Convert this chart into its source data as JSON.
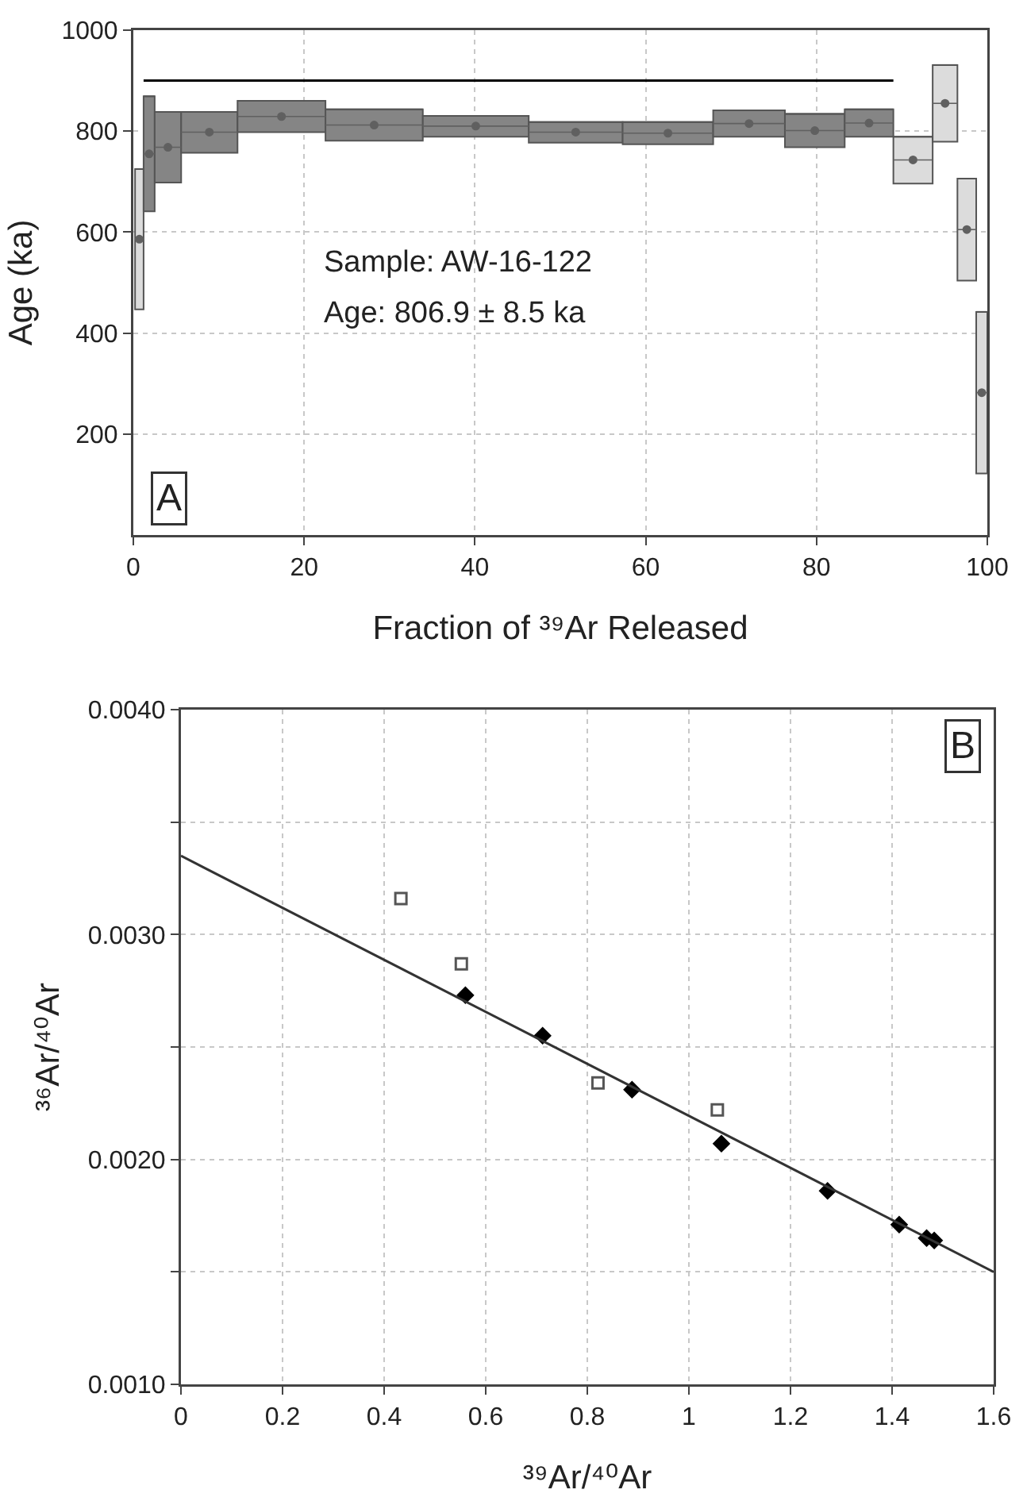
{
  "chart_data": [
    {
      "type": "bar",
      "xlabel": "Fraction of ³⁹Ar Released",
      "ylabel": "Age (ka)",
      "xlim": [
        0,
        100
      ],
      "xticks": [
        0,
        20,
        40,
        60,
        80,
        100
      ],
      "ylim": [
        0,
        1000
      ],
      "yticks": [
        200,
        400,
        600,
        800,
        1000
      ],
      "grid": true,
      "series": [
        {
          "x": [
            0.7,
            1.85,
            4.05,
            8.9,
            17.35,
            28.2,
            40.1,
            51.8,
            62.6,
            72.1,
            79.8,
            86.15,
            91.3,
            95.05,
            97.6,
            99.35
          ],
          "xerrors": [
            0.5,
            0.65,
            1.55,
            3.3,
            5.15,
            5.7,
            6.2,
            5.5,
            5.3,
            4.2,
            3.5,
            2.85,
            2.3,
            1.45,
            1.1,
            0.65
          ],
          "base": [
            447,
            641,
            698,
            757,
            798,
            781,
            789,
            777,
            774,
            789,
            768,
            789,
            696,
            779,
            504,
            122
          ],
          "values": [
            278,
            228,
            140,
            81,
            62,
            62,
            41,
            41,
            44,
            52,
            66,
            54,
            93,
            152,
            202,
            320
          ],
          "colors": [
            "#dcdcdc",
            "#858585",
            "#858585",
            "#858585",
            "#858585",
            "#858585",
            "#858585",
            "#858585",
            "#858585",
            "#858585",
            "#858585",
            "#858585",
            "#dcdcdc",
            "#dcdcdc",
            "#dcdcdc",
            "#dcdcdc"
          ]
        },
        {
          "type": "scatter",
          "marker": "circle",
          "color": "#606060",
          "x": [
            0.7,
            1.85,
            4.05,
            8.9,
            17.35,
            28.2,
            40.1,
            51.8,
            62.6,
            72.1,
            79.8,
            86.15,
            91.3,
            95.05,
            97.6,
            99.35
          ],
          "xerrors": [
            0.5,
            0.65,
            1.55,
            3.3,
            5.15,
            5.7,
            6.2,
            5.5,
            5.3,
            4.2,
            3.5,
            2.85,
            2.3,
            1.45,
            1.1,
            0.65
          ],
          "values": [
            586,
            755,
            768,
            798,
            829,
            812,
            810,
            798,
            796,
            815,
            801,
            816,
            743,
            855,
            605,
            282
          ]
        },
        {
          "type": "line",
          "x": [
            1.2,
            89
          ],
          "values": [
            900,
            900
          ],
          "color": "#000000"
        }
      ],
      "annotations": [
        "Sample: AW-16-122",
        "Age: 806.9 ± 8.5 ka",
        "A"
      ]
    },
    {
      "type": "scatter",
      "xlabel": "³⁹Ar/⁴⁰Ar",
      "ylabel": "³⁶Ar/⁴⁰Ar",
      "xlim": [
        0,
        1.6
      ],
      "xticks": [
        0,
        0.2,
        0.4,
        0.6,
        0.8,
        1,
        1.2,
        1.4,
        1.6
      ],
      "ylim": [
        0.001,
        0.004
      ],
      "yticks": [
        {
          "value": 0.001,
          "label": "0.0010"
        },
        {
          "value": 0.0015,
          "label": null
        },
        {
          "value": 0.002,
          "label": "0.0020"
        },
        {
          "value": 0.0025,
          "label": null
        },
        {
          "value": 0.003,
          "label": "0.0030"
        },
        {
          "value": 0.0035,
          "label": null
        },
        {
          "value": 0.004,
          "label": "0.0040"
        }
      ],
      "grid": true,
      "series": [
        {
          "marker": "diamond",
          "color": "#000000",
          "x": [
            0.56,
            0.712,
            0.888,
            1.064,
            1.273,
            1.414,
            1.468,
            1.483
          ],
          "values": [
            0.00273,
            0.00255,
            0.00231,
            0.00207,
            0.00186,
            0.00171,
            0.00165,
            0.00164
          ]
        },
        {
          "type": "scatter",
          "marker": "square",
          "color": "#555555",
          "x": [
            0.433,
            0.552,
            0.821,
            1.056
          ],
          "values": [
            0.00316,
            0.00287,
            0.00234,
            0.00222
          ]
        },
        {
          "type": "line",
          "color": "#333333",
          "x": [
            0,
            1.6
          ],
          "values": [
            0.00335,
            0.0015
          ]
        }
      ],
      "annotations": [
        "B"
      ]
    }
  ]
}
